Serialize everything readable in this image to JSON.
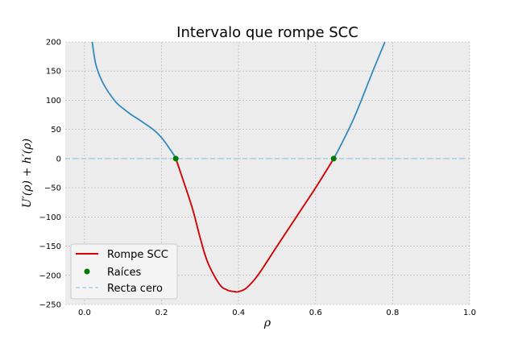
{
  "chart_data": {
    "type": "line",
    "title": "Intervalo que rompe SCC",
    "xlabel": "ρ",
    "ylabel": "U′(ρ) + h′(ρ)",
    "xlim": [
      -0.05,
      1.0
    ],
    "ylim": [
      -250,
      200
    ],
    "xticks": [
      0.0,
      0.2,
      0.4,
      0.6,
      0.8,
      1.0
    ],
    "xtick_labels": [
      "0.0",
      "0.2",
      "0.4",
      "0.6",
      "0.8",
      "1.0"
    ],
    "yticks": [
      200,
      150,
      100,
      50,
      0,
      -50,
      -100,
      -150,
      -200,
      -250
    ],
    "ytick_labels": [
      "200",
      "150",
      "100",
      "50",
      "0",
      "−50",
      "−100",
      "−150",
      "−200",
      "−250"
    ],
    "grid": true,
    "legend_position": "bottom-left",
    "series": [
      {
        "role": "function",
        "color": "#348abd",
        "x": [
          0.02,
          0.03,
          0.05,
          0.08,
          0.1,
          0.12,
          0.15,
          0.18,
          0.2,
          0.22,
          0.237,
          0.25,
          0.28,
          0.3,
          0.32,
          0.35,
          0.37,
          0.39,
          0.4,
          0.42,
          0.45,
          0.5,
          0.55,
          0.6,
          0.647,
          0.68,
          0.7,
          0.72,
          0.75,
          0.78
        ],
        "y": [
          200,
          160,
          127,
          98,
          86,
          76,
          63,
          49,
          36,
          18,
          0,
          -25,
          -85,
          -135,
          -178,
          -215,
          -225,
          -228,
          -228,
          -222,
          -200,
          -150,
          -100,
          -50,
          0,
          42,
          70,
          102,
          152,
          200
        ]
      },
      {
        "name": "Rompe SCC",
        "color": "#dd0000",
        "x": [
          0.237,
          0.25,
          0.28,
          0.3,
          0.32,
          0.35,
          0.37,
          0.39,
          0.4,
          0.42,
          0.45,
          0.5,
          0.55,
          0.6,
          0.647
        ],
        "y": [
          0,
          -25,
          -85,
          -135,
          -178,
          -215,
          -225,
          -228,
          -228,
          -222,
          -200,
          -150,
          -100,
          -50,
          0
        ]
      },
      {
        "name": "Raíces",
        "type": "scatter",
        "color": "#007a00",
        "x": [
          0.237,
          0.647
        ],
        "y": [
          0,
          0
        ]
      },
      {
        "name": "Recta cero",
        "type": "hline",
        "color": "#a6cee3",
        "style": "dashed",
        "y": 0
      }
    ]
  }
}
